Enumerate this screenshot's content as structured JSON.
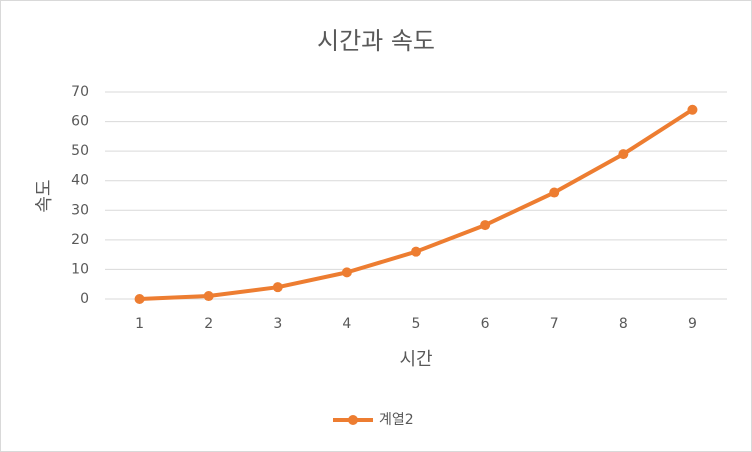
{
  "chart_data": {
    "type": "line",
    "title": "시간과 속도",
    "x_label": "시간",
    "y_label": "속도",
    "categories": [
      "1",
      "2",
      "3",
      "4",
      "5",
      "6",
      "7",
      "8",
      "9"
    ],
    "series": [
      {
        "name": "계열2",
        "color": "#ed7d31",
        "values": [
          0,
          1,
          4,
          9,
          16,
          25,
          36,
          49,
          64
        ]
      }
    ],
    "ylim": [
      0,
      70
    ],
    "yticks": [
      0,
      10,
      20,
      30,
      40,
      50,
      60,
      70
    ],
    "grid": true,
    "legend": "bottom"
  }
}
